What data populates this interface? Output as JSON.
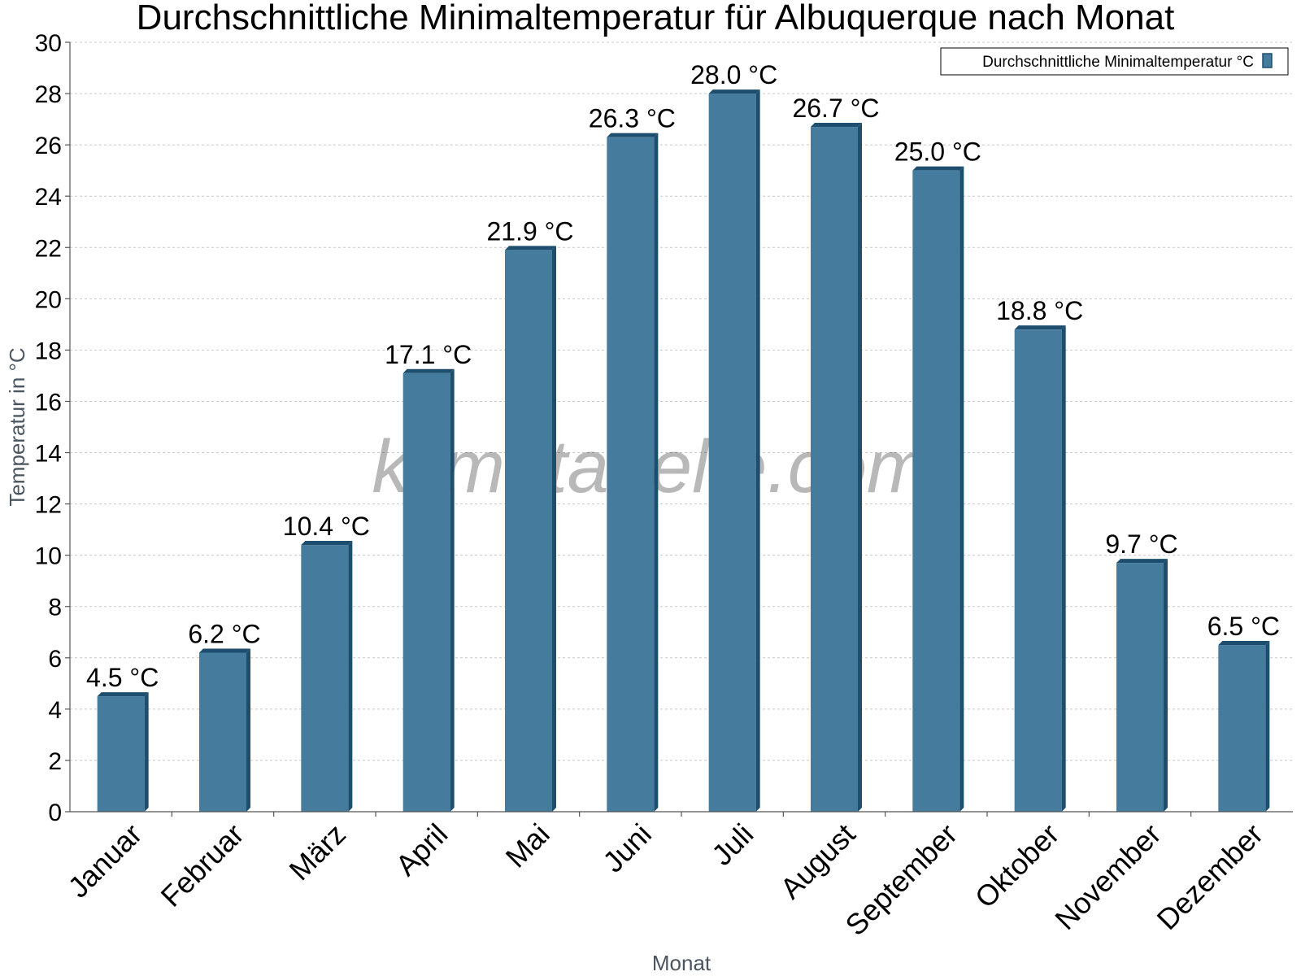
{
  "chart_data": {
    "type": "bar",
    "title": "Durchschnittliche Minimaltemperatur für Albuquerque nach Monat",
    "xlabel": "Monat",
    "ylabel": "Temperatur in °C",
    "categories": [
      "Januar",
      "Februar",
      "März",
      "April",
      "Mai",
      "Juni",
      "Juli",
      "August",
      "September",
      "Oktober",
      "November",
      "Dezember"
    ],
    "series": [
      {
        "name": "Durchschnittliche Minimaltemperatur °C",
        "values": [
          4.5,
          6.2,
          10.4,
          17.1,
          21.9,
          26.3,
          28.0,
          26.7,
          25.0,
          18.8,
          9.7,
          6.5
        ],
        "labels": [
          "4.5 °C",
          "6.2 °C",
          "10.4 °C",
          "17.1 °C",
          "21.9 °C",
          "26.3 °C",
          "28.0 °C",
          "26.7 °C",
          "25.0 °C",
          "18.8 °C",
          "9.7 °C",
          "6.5 °C"
        ],
        "color": "#457b9d"
      }
    ],
    "ylim": [
      0,
      30
    ],
    "yticks": [
      0,
      2,
      4,
      6,
      8,
      10,
      12,
      14,
      16,
      18,
      20,
      22,
      24,
      26,
      28,
      30
    ],
    "grid": true,
    "legend_position": "top-right",
    "watermark": "klimatabelle.com",
    "colors": {
      "bar_front": "#457b9d",
      "bar_side": "#1d4e6e",
      "bar_top": "#1d4e6e"
    }
  }
}
